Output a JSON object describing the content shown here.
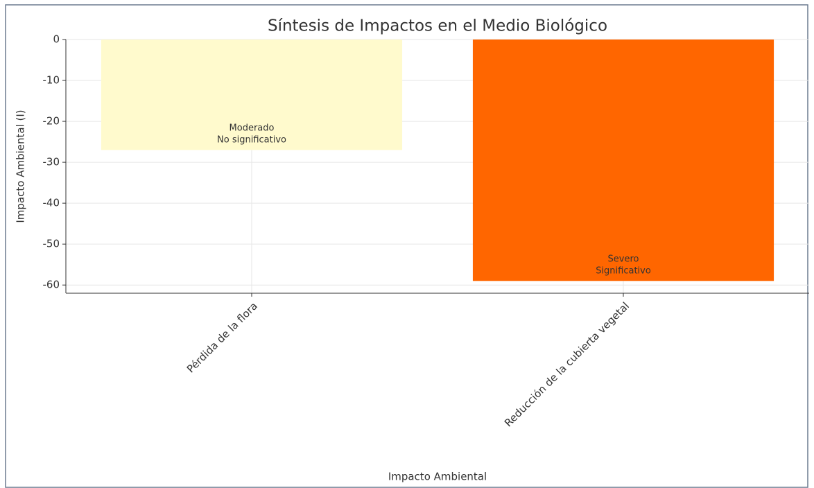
{
  "chart_data": {
    "type": "bar",
    "title": "Síntesis de Impactos en el Medio Biológico",
    "x_label": "Impacto Ambiental",
    "y_label": "Impacto Ambiental (I)",
    "categories": [
      "Pérdida de la flora",
      "Reducción de la cubierta vegetal"
    ],
    "values": [
      -27,
      -59
    ],
    "colors": [
      "#fffacd",
      "#ff6600"
    ],
    "bar_labels": [
      [
        "Moderado",
        "No significativo"
      ],
      [
        "Severo",
        "Significativo"
      ]
    ],
    "ylim": [
      -62,
      0
    ],
    "yticks": [
      0,
      -10,
      -20,
      -30,
      -40,
      -50,
      -60
    ],
    "grid": true
  }
}
